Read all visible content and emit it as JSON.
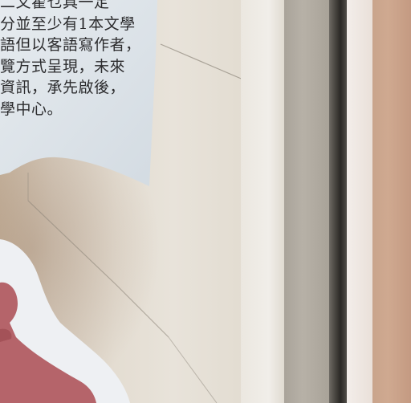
{
  "notice": {
    "lines": [
      "二又翟乜具一定",
      "分並至少有1本文學",
      "語但以客語寫作者，",
      "覽方式呈現，未來",
      "資訊，承先啟後，",
      "學中心。"
    ]
  },
  "colors": {
    "wall": "#e4ddd2",
    "paper": "#dfe5ea",
    "text": "#2c2c2e",
    "frame_dark": "#2a2825",
    "frame_grey": "#b7b1a7",
    "wood": "#cfa990",
    "figure_red": "#b5646a"
  }
}
